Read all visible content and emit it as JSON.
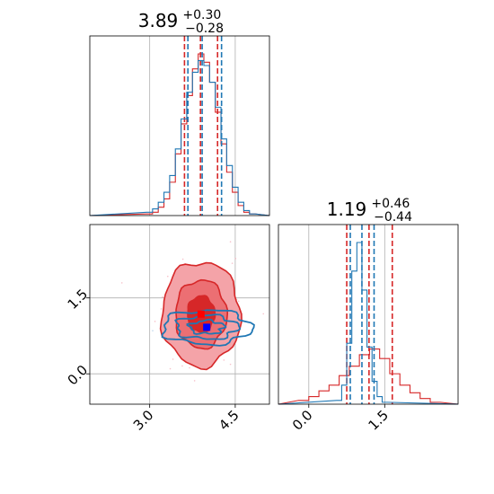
{
  "chart_data": {
    "type": "corner",
    "parameters": [
      {
        "median": "3.89",
        "plus": "+0.30",
        "minus": "−0.28"
      },
      {
        "median": "1.19",
        "plus": "+0.46",
        "minus": "−0.44"
      }
    ],
    "x_range_param1": [
      1.95,
      5.1
    ],
    "x_range_param2": [
      -0.6,
      2.95
    ],
    "y_range_param2": [
      -0.6,
      2.95
    ],
    "x_ticks_param1": [
      {
        "value": 3.0,
        "label": "3.0"
      },
      {
        "value": 4.5,
        "label": "4.5"
      }
    ],
    "x_ticks_param2": [
      {
        "value": 0.0,
        "label": "0.0"
      },
      {
        "value": 1.5,
        "label": "1.5"
      }
    ],
    "y_ticks_param2": [
      {
        "value": 0.0,
        "label": "0.0"
      },
      {
        "value": 1.5,
        "label": "1.5"
      }
    ],
    "grid": true,
    "series": [
      {
        "color": "#d62728",
        "quantiles_param1": [
          3.61,
          3.89,
          4.19
        ],
        "quantiles_param2": [
          0.75,
          1.19,
          1.65
        ],
        "point": [
          3.9,
          1.18
        ],
        "hist_param1": [
          [
            3.0,
            0.01
          ],
          [
            3.1,
            0.02
          ],
          [
            3.2,
            0.05
          ],
          [
            3.3,
            0.1
          ],
          [
            3.4,
            0.2
          ],
          [
            3.5,
            0.37
          ],
          [
            3.6,
            0.55
          ],
          [
            3.7,
            0.72
          ],
          [
            3.8,
            0.88
          ],
          [
            3.9,
            0.97
          ],
          [
            4.0,
            0.92
          ],
          [
            4.1,
            0.8
          ],
          [
            4.2,
            0.62
          ],
          [
            4.3,
            0.43
          ],
          [
            4.4,
            0.26
          ],
          [
            4.5,
            0.14
          ],
          [
            4.6,
            0.06
          ],
          [
            4.7,
            0.02
          ],
          [
            4.8,
            0.01
          ]
        ],
        "hist_param2": [
          [
            -0.1,
            0.02
          ],
          [
            0.1,
            0.04
          ],
          [
            0.3,
            0.07
          ],
          [
            0.5,
            0.1
          ],
          [
            0.7,
            0.15
          ],
          [
            0.9,
            0.2
          ],
          [
            1.1,
            0.26
          ],
          [
            1.3,
            0.29
          ],
          [
            1.5,
            0.24
          ],
          [
            1.7,
            0.16
          ],
          [
            1.9,
            0.1
          ],
          [
            2.1,
            0.06
          ],
          [
            2.3,
            0.03
          ],
          [
            2.5,
            0.01
          ]
        ],
        "contour_sigma": [
          0.3,
          0.45
        ]
      },
      {
        "color": "#1f77b4",
        "quantiles_param1": [
          3.67,
          3.92,
          4.26
        ],
        "quantiles_param2": [
          0.82,
          1.05,
          1.29
        ],
        "point": [
          4.0,
          0.92
        ],
        "hist_param1": [
          [
            3.0,
            0.02
          ],
          [
            3.1,
            0.04
          ],
          [
            3.2,
            0.08
          ],
          [
            3.3,
            0.14
          ],
          [
            3.4,
            0.24
          ],
          [
            3.5,
            0.4
          ],
          [
            3.6,
            0.58
          ],
          [
            3.7,
            0.74
          ],
          [
            3.8,
            0.86
          ],
          [
            3.9,
            0.93
          ],
          [
            4.0,
            0.9
          ],
          [
            4.1,
            0.8
          ],
          [
            4.2,
            0.65
          ],
          [
            4.3,
            0.46
          ],
          [
            4.4,
            0.3
          ],
          [
            4.5,
            0.17
          ],
          [
            4.6,
            0.08
          ],
          [
            4.7,
            0.03
          ],
          [
            4.8,
            0.01
          ]
        ],
        "hist_param2": [
          [
            0.6,
            0.02
          ],
          [
            0.7,
            0.1
          ],
          [
            0.8,
            0.32
          ],
          [
            0.9,
            0.7
          ],
          [
            1.0,
            0.85
          ],
          [
            1.1,
            0.6
          ],
          [
            1.2,
            0.3
          ],
          [
            1.3,
            0.12
          ],
          [
            1.4,
            0.04
          ],
          [
            1.5,
            0.01
          ]
        ],
        "contour_sigma": [
          0.3,
          0.13
        ]
      }
    ]
  }
}
